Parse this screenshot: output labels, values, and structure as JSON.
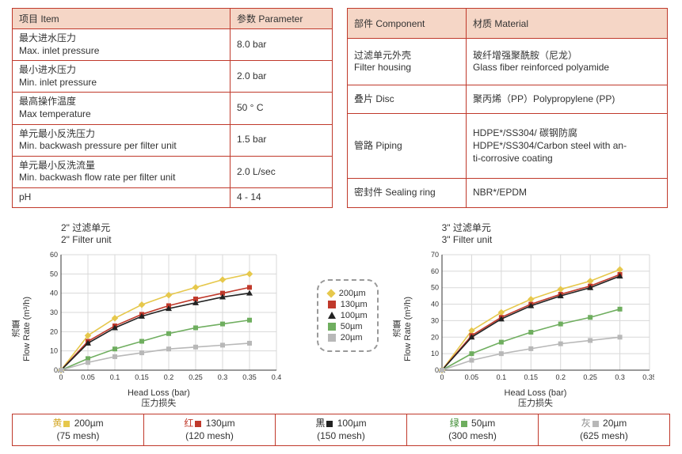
{
  "tables": {
    "left": {
      "headers": [
        "项目 Item",
        "参数 Parameter"
      ],
      "rows": [
        [
          "最大进水压力\nMax. inlet pressure",
          "8.0 bar"
        ],
        [
          "最小进水压力\nMin. inlet pressure",
          "2.0 bar"
        ],
        [
          "最高操作温度\nMax temperature",
          "50 ° C"
        ],
        [
          "单元最小反洗压力\nMin. backwash pressure per filter unit",
          "1.5 bar"
        ],
        [
          "单元最小反洗流量\nMin. backwash flow rate per filter unit",
          "2.0 L/sec"
        ],
        [
          "pH",
          "4 - 14"
        ]
      ]
    },
    "right": {
      "headers": [
        "部件 Component",
        "材质 Material"
      ],
      "rows": [
        [
          "过滤单元外壳\nFilter housing",
          "玻纤增强聚酰胺（尼龙）\nGlass fiber reinforced polyamide"
        ],
        [
          "叠片 Disc",
          "聚丙烯（PP）Polypropylene (PP)"
        ],
        [
          "管路 Piping",
          "HDPE*/SS304/ 碳钢防腐\nHDPE*/SS304/Carbon steel with an-\nti-corrosive coating"
        ],
        [
          "密封件 Sealing ring",
          "NBR*/EPDM"
        ]
      ]
    }
  },
  "chart_left": {
    "title_cn": "2\"  过滤单元",
    "title_en": "2\"  Filter unit",
    "ylabel_cn": "流量",
    "ylabel_en": "Flow Rate (m³/h)",
    "xlabel_en": "Head Loss (bar)",
    "xlabel_cn": "压力损失",
    "xlim": [
      0,
      0.4
    ],
    "xtick_step": 0.05,
    "ylim": [
      0,
      60
    ],
    "ytick_step": 10,
    "grid_color": "#d8d8d8",
    "background": "#ffffff",
    "series": [
      {
        "name": "200µm",
        "color": "#e6c84c",
        "marker": "diamond",
        "data": [
          [
            0,
            0
          ],
          [
            0.05,
            18
          ],
          [
            0.1,
            27
          ],
          [
            0.15,
            34
          ],
          [
            0.2,
            39
          ],
          [
            0.25,
            43
          ],
          [
            0.3,
            47
          ],
          [
            0.35,
            50
          ]
        ]
      },
      {
        "name": "130µm",
        "color": "#c0392b",
        "marker": "square",
        "data": [
          [
            0,
            0
          ],
          [
            0.05,
            15
          ],
          [
            0.1,
            23
          ],
          [
            0.15,
            29
          ],
          [
            0.2,
            33.5
          ],
          [
            0.25,
            37
          ],
          [
            0.3,
            40
          ],
          [
            0.35,
            43
          ]
        ]
      },
      {
        "name": "100µm",
        "color": "#222222",
        "marker": "triangle",
        "data": [
          [
            0,
            0
          ],
          [
            0.05,
            14
          ],
          [
            0.1,
            22
          ],
          [
            0.15,
            28
          ],
          [
            0.2,
            32
          ],
          [
            0.25,
            35
          ],
          [
            0.3,
            38
          ],
          [
            0.35,
            40
          ]
        ]
      },
      {
        "name": "50µm",
        "color": "#6fae5f",
        "marker": "square",
        "data": [
          [
            0,
            0
          ],
          [
            0.05,
            6
          ],
          [
            0.1,
            11
          ],
          [
            0.15,
            15
          ],
          [
            0.2,
            19
          ],
          [
            0.25,
            22
          ],
          [
            0.3,
            24
          ],
          [
            0.35,
            26
          ]
        ]
      },
      {
        "name": "20µm",
        "color": "#b8b8b8",
        "marker": "square",
        "data": [
          [
            0,
            0
          ],
          [
            0.05,
            4
          ],
          [
            0.1,
            7
          ],
          [
            0.15,
            9
          ],
          [
            0.2,
            11
          ],
          [
            0.25,
            12
          ],
          [
            0.3,
            13
          ],
          [
            0.35,
            14
          ]
        ]
      }
    ]
  },
  "chart_right": {
    "title_cn": "3\"  过滤单元",
    "title_en": "3\"  Filter unit",
    "ylabel_cn": "流量",
    "ylabel_en": "Flow Rate (m³/h)",
    "xlabel_en": "Head Loss (bar)",
    "xlabel_cn": "压力损失",
    "xlim": [
      0,
      0.35
    ],
    "xtick_step": 0.05,
    "ylim": [
      0,
      70
    ],
    "ytick_step": 10,
    "grid_color": "#d8d8d8",
    "background": "#ffffff",
    "series": [
      {
        "name": "200µm",
        "color": "#e6c84c",
        "marker": "diamond",
        "data": [
          [
            0,
            0
          ],
          [
            0.05,
            24
          ],
          [
            0.1,
            35
          ],
          [
            0.15,
            43
          ],
          [
            0.2,
            49
          ],
          [
            0.25,
            54
          ],
          [
            0.3,
            61
          ]
        ]
      },
      {
        "name": "130µm",
        "color": "#c0392b",
        "marker": "square",
        "data": [
          [
            0,
            0
          ],
          [
            0.05,
            21
          ],
          [
            0.1,
            32
          ],
          [
            0.15,
            40
          ],
          [
            0.2,
            46
          ],
          [
            0.25,
            51
          ],
          [
            0.3,
            58
          ]
        ]
      },
      {
        "name": "100µm",
        "color": "#222222",
        "marker": "triangle",
        "data": [
          [
            0,
            0
          ],
          [
            0.05,
            20
          ],
          [
            0.1,
            31
          ],
          [
            0.15,
            39
          ],
          [
            0.2,
            45
          ],
          [
            0.25,
            50
          ],
          [
            0.3,
            57
          ]
        ]
      },
      {
        "name": "50µm",
        "color": "#6fae5f",
        "marker": "square",
        "data": [
          [
            0,
            0
          ],
          [
            0.05,
            10
          ],
          [
            0.1,
            17
          ],
          [
            0.15,
            23
          ],
          [
            0.2,
            28
          ],
          [
            0.25,
            32
          ],
          [
            0.3,
            37
          ]
        ]
      },
      {
        "name": "20µm",
        "color": "#b8b8b8",
        "marker": "square",
        "data": [
          [
            0,
            0
          ],
          [
            0.05,
            6
          ],
          [
            0.1,
            10
          ],
          [
            0.15,
            13
          ],
          [
            0.2,
            16
          ],
          [
            0.25,
            18
          ],
          [
            0.3,
            20
          ]
        ]
      }
    ]
  },
  "legend_box": [
    {
      "label": "200µm",
      "color": "#e6c84c",
      "shape": "diamond"
    },
    {
      "label": "130µm",
      "color": "#c0392b",
      "shape": "square"
    },
    {
      "label": "100µm",
      "color": "#222222",
      "shape": "triangle"
    },
    {
      "label": "50µm",
      "color": "#6fae5f",
      "shape": "square"
    },
    {
      "label": "20µm",
      "color": "#b8b8b8",
      "shape": "square"
    }
  ],
  "color_legend": [
    {
      "prefix": "黄",
      "color": "#e6c84c",
      "size": "200µm",
      "mesh": "(75 mesh)",
      "text_color": "#d4a82a"
    },
    {
      "prefix": "红",
      "color": "#c0392b",
      "size": "130µm",
      "mesh": "(120 mesh)",
      "text_color": "#c0392b"
    },
    {
      "prefix": "黑",
      "color": "#222222",
      "size": "100µm",
      "mesh": "(150 mesh)",
      "text_color": "#222222"
    },
    {
      "prefix": "绿",
      "color": "#6fae5f",
      "size": "50µm",
      "mesh": "(300 mesh)",
      "text_color": "#3a8a2e"
    },
    {
      "prefix": "灰",
      "color": "#b8b8b8",
      "size": "20µm",
      "mesh": "(625 mesh)",
      "text_color": "#888888"
    }
  ]
}
